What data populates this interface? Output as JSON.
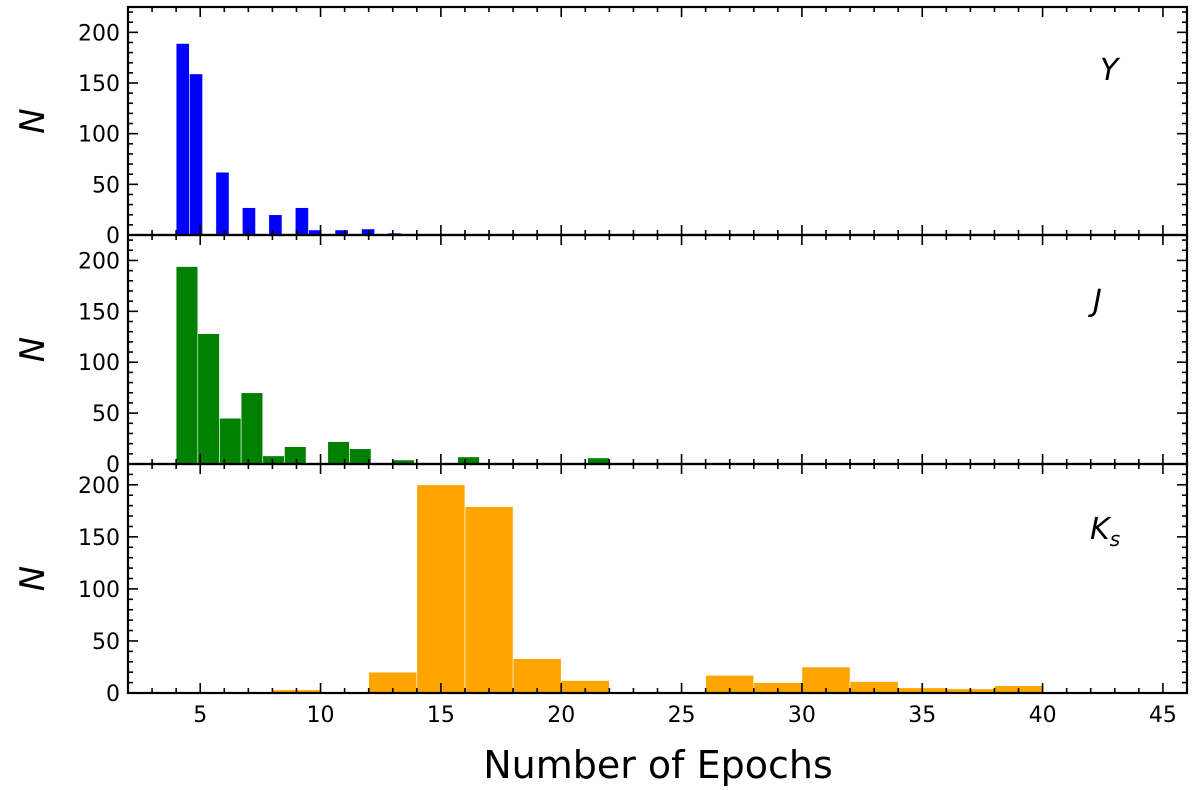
{
  "chart_data": {
    "type": "bar",
    "xlabel": "Number of Epochs",
    "xlim": [
      2,
      46
    ],
    "x_ticks": [
      5,
      10,
      15,
      20,
      25,
      30,
      35,
      40,
      45
    ],
    "shared_x": true,
    "panels": [
      {
        "name": "Y",
        "band_label": "Y",
        "band_subscript": "",
        "ylabel": "N",
        "ylim": [
          0,
          225
        ],
        "y_ticks": [
          0,
          50,
          100,
          150,
          200
        ],
        "color": "#0000ff",
        "bin_width": 0.55,
        "bins": [
          {
            "x0": 4.0,
            "count": 189
          },
          {
            "x0": 4.55,
            "count": 159
          },
          {
            "x0": 5.65,
            "count": 62
          },
          {
            "x0": 6.75,
            "count": 27
          },
          {
            "x0": 7.85,
            "count": 20
          },
          {
            "x0": 8.95,
            "count": 27
          },
          {
            "x0": 9.5,
            "count": 5
          },
          {
            "x0": 10.6,
            "count": 5
          },
          {
            "x0": 11.7,
            "count": 6
          },
          {
            "x0": 12.8,
            "count": 2
          },
          {
            "x0": 13.9,
            "count": 1
          }
        ]
      },
      {
        "name": "J",
        "band_label": "J",
        "band_subscript": "",
        "ylabel": "N",
        "ylim": [
          0,
          225
        ],
        "y_ticks": [
          0,
          50,
          100,
          150,
          200
        ],
        "color": "#008000",
        "bin_width": 0.9,
        "bins": [
          {
            "x0": 4.0,
            "count": 194
          },
          {
            "x0": 4.9,
            "count": 128
          },
          {
            "x0": 5.8,
            "count": 45
          },
          {
            "x0": 6.7,
            "count": 70
          },
          {
            "x0": 7.6,
            "count": 8
          },
          {
            "x0": 8.5,
            "count": 17
          },
          {
            "x0": 10.3,
            "count": 22
          },
          {
            "x0": 11.2,
            "count": 15
          },
          {
            "x0": 13.0,
            "count": 4
          },
          {
            "x0": 13.9,
            "count": 1
          },
          {
            "x0": 15.7,
            "count": 7
          },
          {
            "x0": 21.1,
            "count": 6
          }
        ]
      },
      {
        "name": "Ks",
        "band_label": "K",
        "band_subscript": "s",
        "ylabel": "N",
        "ylim": [
          0,
          220
        ],
        "y_ticks": [
          0,
          50,
          100,
          150,
          200
        ],
        "color": "#ffa500",
        "bin_width": 2.0,
        "bins": [
          {
            "x0": 8,
            "count": 3
          },
          {
            "x0": 12,
            "count": 20
          },
          {
            "x0": 14,
            "count": 200
          },
          {
            "x0": 16,
            "count": 179
          },
          {
            "x0": 18,
            "count": 33
          },
          {
            "x0": 20,
            "count": 12
          },
          {
            "x0": 24,
            "count": 1
          },
          {
            "x0": 26,
            "count": 17
          },
          {
            "x0": 28,
            "count": 10
          },
          {
            "x0": 30,
            "count": 25
          },
          {
            "x0": 32,
            "count": 11
          },
          {
            "x0": 34,
            "count": 5
          },
          {
            "x0": 36,
            "count": 4
          },
          {
            "x0": 38,
            "count": 7
          },
          {
            "x0": 42,
            "count": 1
          }
        ]
      }
    ]
  }
}
